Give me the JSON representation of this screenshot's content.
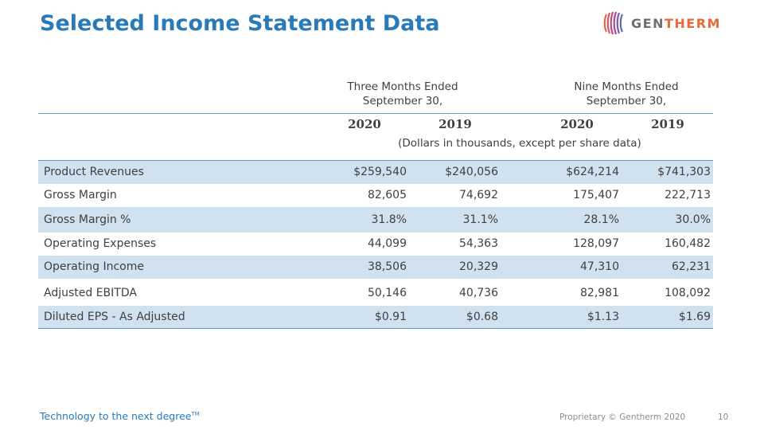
{
  "title": "Selected Income Statement Data",
  "logo": {
    "part1": "GEN",
    "part2": "THERM",
    "icon": "gentherm-logo-icon"
  },
  "table": {
    "period_three": [
      "Three Months Ended",
      "September 30,"
    ],
    "period_nine": [
      "Nine Months Ended",
      "September 30,"
    ],
    "years": [
      "2020",
      "2019",
      "2020",
      "2019"
    ],
    "units_note": "(Dollars in thousands, except per share data)",
    "rows": [
      {
        "label": "Product Revenues",
        "values": [
          "$259,540",
          "$240,056",
          "$624,214",
          "$741,303"
        ]
      },
      {
        "label": "Gross Margin",
        "values": [
          "82,605",
          "74,692",
          "175,407",
          "222,713"
        ]
      },
      {
        "label": "Gross Margin %",
        "values": [
          "31.8%",
          "31.1%",
          "28.1%",
          "30.0%"
        ]
      },
      {
        "label": "Operating Expenses",
        "values": [
          "44,099",
          "54,363",
          "128,097",
          "160,482"
        ]
      },
      {
        "label": "Operating Income",
        "values": [
          "38,506",
          "20,329",
          "47,310",
          "62,231"
        ]
      },
      {
        "label": "Adjusted EBITDA",
        "values": [
          "50,146",
          "40,736",
          "82,981",
          "108,092"
        ]
      },
      {
        "label": "Diluted EPS - As Adjusted",
        "values": [
          "$0.91",
          "$0.68",
          "$1.13",
          "$1.69"
        ]
      }
    ]
  },
  "footer": {
    "tagline": "Technology to the next degree",
    "tagline_mark": "TM",
    "copyright": "Proprietary © Gentherm 2020",
    "page_number": "10"
  },
  "colors": {
    "title": "#2a7ab8",
    "row_shade": "#d0e1f0",
    "rule": "#5b9bd5",
    "logo_accent": "#e86a3a"
  }
}
